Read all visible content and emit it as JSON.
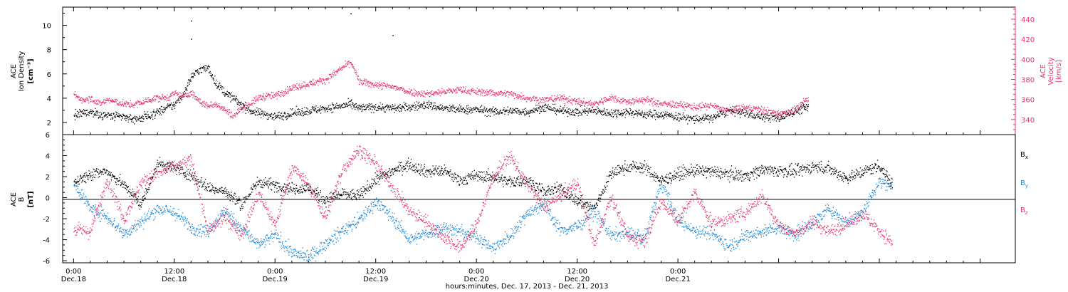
{
  "colors": {
    "black": "#000000",
    "pink": "#e8336a",
    "blue": "#1a88dc"
  },
  "chart_data": [
    {
      "type": "scatter",
      "panel": "top",
      "ylabel_left_lines": [
        "ACE",
        "Ion Density"
      ],
      "ylabel_left_unit": "[cm⁻³]",
      "ylabel_right_lines": [
        "ACE",
        "Velocity"
      ],
      "ylabel_right_unit": "[km/s]",
      "ylim_left": [
        1,
        11.5
      ],
      "yticks_left": [
        2,
        4,
        6,
        8,
        10
      ],
      "ylim_right": [
        325,
        452
      ],
      "yticks_right": [
        340,
        360,
        380,
        400,
        420,
        440
      ],
      "series": [
        {
          "axis": "left",
          "color": "black",
          "x": [
            0.0,
            1.0,
            2.0,
            3.0,
            4.0,
            5.0,
            6.0,
            7.0,
            8.0,
            9.0,
            10.0,
            11.0,
            12.0,
            13.0,
            14.0,
            15.0,
            16.0,
            17.0,
            18.0,
            19.0,
            20.0,
            21.0,
            22.0,
            23.0,
            24.0,
            26.0,
            28.0,
            30.0,
            32.0,
            33.0,
            34.0,
            36.0,
            38.0,
            40.0,
            42.0,
            44.0,
            46.0,
            48.0,
            50.0,
            52.0,
            54.0,
            56.0,
            58.0,
            60.0,
            62.0,
            64.0,
            66.0,
            68.0,
            70.0,
            72.0,
            74.0,
            76.0,
            78.0,
            80.0,
            82.0,
            84.0,
            86.0,
            87.5
          ],
          "y": [
            2.6,
            2.8,
            2.9,
            2.7,
            2.6,
            2.5,
            2.5,
            2.3,
            2.4,
            2.6,
            2.9,
            3.2,
            3.5,
            4.3,
            5.8,
            6.4,
            6.5,
            5.2,
            4.5,
            4.0,
            3.5,
            3.0,
            2.8,
            2.7,
            2.5,
            2.8,
            3.0,
            3.2,
            3.4,
            3.5,
            3.2,
            3.3,
            3.2,
            3.3,
            3.5,
            3.2,
            3.1,
            3.1,
            2.9,
            3.0,
            2.9,
            3.3,
            3.0,
            2.9,
            3.0,
            2.8,
            2.9,
            2.7,
            2.7,
            2.5,
            2.3,
            2.4,
            3.0,
            2.8,
            2.5,
            2.4,
            3.0,
            3.3
          ],
          "outliers": [
            [
              14.0,
              10.4
            ],
            [
              14.0,
              8.9
            ],
            [
              33.0,
              11.0
            ],
            [
              38.0,
              9.2
            ]
          ]
        },
        {
          "axis": "right",
          "color": "pink",
          "x": [
            0.0,
            1.0,
            2.0,
            3.0,
            4.0,
            5.0,
            6.0,
            7.0,
            8.0,
            9.0,
            10.0,
            11.0,
            12.0,
            13.0,
            14.0,
            15.0,
            16.0,
            17.0,
            18.0,
            19.0,
            20.0,
            21.0,
            22.0,
            23.0,
            24.0,
            26.0,
            28.0,
            30.0,
            32.0,
            33.0,
            34.0,
            36.0,
            38.0,
            40.0,
            42.0,
            44.0,
            46.0,
            48.0,
            50.0,
            52.0,
            54.0,
            56.0,
            58.0,
            60.0,
            62.0,
            64.0,
            66.0,
            68.0,
            70.0,
            72.0,
            74.0,
            76.0,
            78.0,
            80.0,
            82.0,
            84.0,
            86.0,
            87.5
          ],
          "y": [
            365,
            360,
            362,
            356,
            360,
            358,
            356,
            355,
            357,
            360,
            362,
            362,
            366,
            363,
            367,
            358,
            354,
            356,
            350,
            344,
            352,
            356,
            362,
            364,
            364,
            372,
            376,
            380,
            392,
            398,
            378,
            375,
            373,
            368,
            366,
            368,
            370,
            368,
            367,
            366,
            362,
            360,
            362,
            358,
            356,
            362,
            358,
            360,
            356,
            355,
            353,
            354,
            349,
            352,
            350,
            346,
            350,
            361
          ]
        }
      ]
    },
    {
      "type": "scatter",
      "panel": "bottom",
      "ylabel_left_lines": [
        "ACE",
        "B"
      ],
      "ylabel_left_unit": "[nT]",
      "ylim": [
        -6.2,
        6
      ],
      "yticks": [
        -6,
        -4,
        -2,
        0,
        2,
        4,
        6
      ],
      "legend": {
        "position": "right",
        "entries": [
          {
            "base": "B",
            "sub": "x",
            "color": "black"
          },
          {
            "base": "B",
            "sub": "y",
            "color": "blue"
          },
          {
            "base": "B",
            "sub": "z",
            "color": "pink"
          }
        ]
      },
      "series": [
        {
          "name": "Bx",
          "color": "black",
          "x": [
            0.0,
            2.0,
            4.0,
            6.0,
            8.0,
            10.0,
            12.0,
            14.0,
            16.0,
            18.0,
            20.0,
            22.0,
            24.0,
            26.0,
            28.0,
            30.0,
            32.0,
            34.0,
            36.0,
            38.0,
            40.0,
            42.0,
            44.0,
            46.0,
            48.0,
            50.0,
            52.0,
            54.0,
            56.0,
            58.0,
            60.0,
            62.0,
            64.0,
            66.0,
            68.0,
            70.0,
            72.0,
            74.0,
            76.0,
            78.0,
            80.0,
            82.0,
            84.0,
            86.0,
            88.0,
            90.0,
            92.0,
            94.0,
            96.0,
            97.5
          ],
          "y": [
            1.5,
            2.3,
            2.5,
            1.2,
            -0.6,
            3.3,
            2.9,
            2.1,
            1.0,
            0.6,
            -0.6,
            1.6,
            1.2,
            0.9,
            0.9,
            -0.2,
            0.4,
            0.2,
            1.8,
            2.6,
            3.2,
            2.5,
            2.6,
            1.7,
            2.1,
            2.0,
            1.5,
            1.7,
            0.6,
            0.9,
            -0.3,
            -1.0,
            2.3,
            3.0,
            2.9,
            1.6,
            2.3,
            2.6,
            2.5,
            2.3,
            2.1,
            2.7,
            2.6,
            2.5,
            3.0,
            2.8,
            1.9,
            2.5,
            3.1,
            1.2
          ]
        },
        {
          "name": "By",
          "color": "blue",
          "x": [
            0.0,
            2.0,
            4.0,
            6.0,
            8.0,
            10.0,
            12.0,
            14.0,
            16.0,
            18.0,
            20.0,
            22.0,
            24.0,
            26.0,
            28.0,
            30.0,
            32.0,
            34.0,
            36.0,
            38.0,
            40.0,
            42.0,
            44.0,
            46.0,
            48.0,
            50.0,
            52.0,
            54.0,
            56.0,
            58.0,
            60.0,
            62.0,
            64.0,
            66.0,
            68.0,
            70.0,
            72.0,
            74.0,
            76.0,
            78.0,
            80.0,
            82.0,
            84.0,
            86.0,
            88.0,
            90.0,
            92.0,
            94.0,
            96.0,
            97.5
          ],
          "y": [
            1.5,
            -1.0,
            -1.8,
            -3.4,
            -2.3,
            -1.0,
            -1.4,
            -2.8,
            -3.2,
            -1.2,
            -2.9,
            -4.5,
            -3.5,
            -5.2,
            -5.6,
            -4.4,
            -3.1,
            -2.1,
            -0.3,
            -1.9,
            -4.0,
            -3.4,
            -2.8,
            -3.2,
            -3.7,
            -4.8,
            -3.6,
            -1.4,
            -0.6,
            -3.1,
            -2.7,
            -1.2,
            -3.6,
            -3.3,
            -3.8,
            1.5,
            -2.2,
            -3.1,
            -3.3,
            -4.6,
            -3.6,
            -3.2,
            -2.8,
            -3.5,
            -2.4,
            -1.0,
            -2.4,
            -1.2,
            1.6,
            1.3
          ]
        },
        {
          "name": "Bz",
          "color": "pink",
          "x": [
            0.0,
            2.0,
            4.0,
            6.0,
            8.0,
            10.0,
            12.0,
            14.0,
            16.0,
            18.0,
            20.0,
            22.0,
            24.0,
            26.0,
            28.0,
            30.0,
            32.0,
            34.0,
            36.0,
            38.0,
            40.0,
            42.0,
            44.0,
            46.0,
            48.0,
            50.0,
            52.0,
            54.0,
            56.0,
            58.0,
            60.0,
            62.0,
            64.0,
            66.0,
            68.0,
            70.0,
            72.0,
            74.0,
            76.0,
            78.0,
            80.0,
            82.0,
            84.0,
            86.0,
            88.0,
            90.0,
            92.0,
            94.0,
            96.0,
            97.5
          ],
          "y": [
            -3.0,
            -3.2,
            1.8,
            -2.0,
            1.5,
            2.3,
            3.0,
            3.6,
            -3.2,
            -1.8,
            -3.5,
            0.4,
            -2.6,
            3.0,
            1.2,
            -1.9,
            2.7,
            4.6,
            3.2,
            1.0,
            -1.3,
            -2.2,
            -3.7,
            -4.8,
            -2.5,
            2.1,
            4.0,
            1.3,
            -0.8,
            0.2,
            1.5,
            -4.5,
            0.2,
            -3.8,
            -4.1,
            -0.3,
            -2.2,
            0.5,
            -2.4,
            -2.0,
            -1.4,
            0.2,
            -2.6,
            -3.4,
            -2.3,
            -3.2,
            -2.5,
            -1.5,
            -3.1,
            -4.3
          ]
        }
      ]
    }
  ],
  "xaxis": {
    "title": "hours:minutes, Dec. 17, 2013 - Dec. 21, 2013",
    "ticks": [
      {
        "time": "0:00",
        "date": "Dec.18"
      },
      {
        "time": "12:00",
        "date": "Dec.18"
      },
      {
        "time": "0:00",
        "date": "Dec.19"
      },
      {
        "time": "12:00",
        "date": "Dec.19"
      },
      {
        "time": "0:00",
        "date": "Dec.20"
      },
      {
        "time": "12:00",
        "date": "Dec.20"
      },
      {
        "time": "0:00",
        "date": "Dec.21"
      }
    ]
  }
}
